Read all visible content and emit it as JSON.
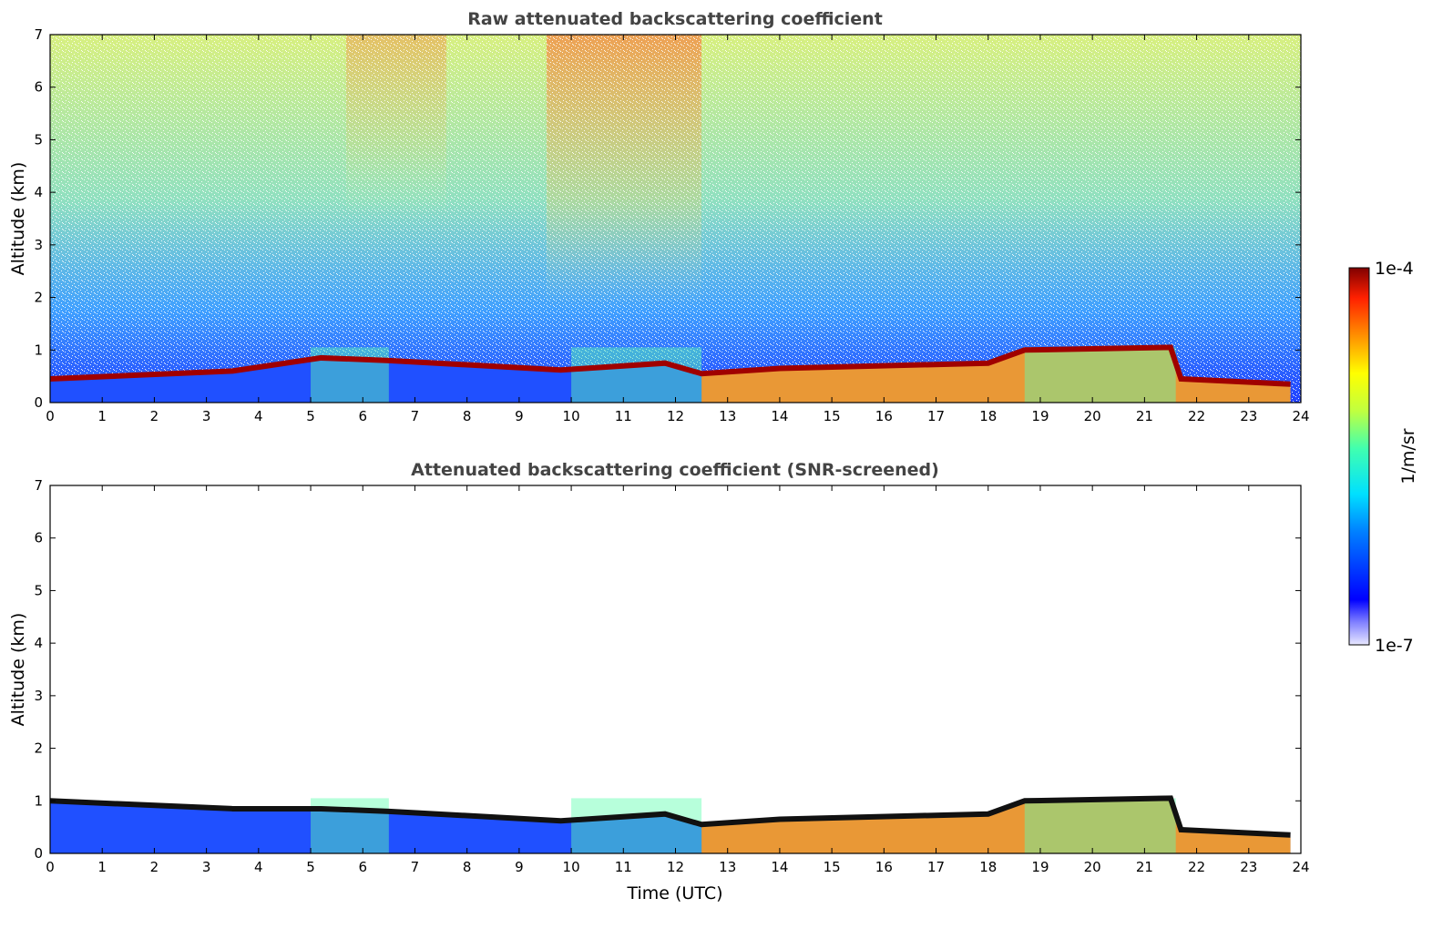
{
  "chart_data": [
    {
      "type": "heatmap",
      "title": "Raw attenuated backscattering coefficient",
      "xlabel": "",
      "ylabel": "Altitude (km)",
      "xlim": [
        0,
        24
      ],
      "ylim": [
        0,
        7
      ],
      "x_ticks": [
        "0",
        "1",
        "2",
        "3",
        "4",
        "5",
        "6",
        "7",
        "8",
        "9",
        "10",
        "11",
        "12",
        "13",
        "14",
        "15",
        "16",
        "17",
        "18",
        "19",
        "20",
        "21",
        "22",
        "23",
        "24"
      ],
      "y_ticks": [
        "0",
        "1",
        "2",
        "3",
        "4",
        "5",
        "6",
        "7"
      ],
      "layer_top_km": [
        {
          "x": 0,
          "y": 0.45
        },
        {
          "x": 3.5,
          "y": 0.6
        },
        {
          "x": 5.2,
          "y": 0.85
        },
        {
          "x": 6.5,
          "y": 0.8
        },
        {
          "x": 9.8,
          "y": 0.62
        },
        {
          "x": 11.8,
          "y": 0.75
        },
        {
          "x": 12.5,
          "y": 0.55
        },
        {
          "x": 14.0,
          "y": 0.65
        },
        {
          "x": 18.0,
          "y": 0.75
        },
        {
          "x": 18.7,
          "y": 1.0
        },
        {
          "x": 21.5,
          "y": 1.05
        },
        {
          "x": 21.7,
          "y": 0.45
        },
        {
          "x": 23.8,
          "y": 0.35
        }
      ],
      "background_noise": "strong, increasing with altitude"
    },
    {
      "type": "heatmap",
      "title": "Attenuated backscattering coefficient (SNR-screened)",
      "xlabel": "Time (UTC)",
      "ylabel": "Altitude (km)",
      "xlim": [
        0,
        24
      ],
      "ylim": [
        0,
        7
      ],
      "x_ticks": [
        "0",
        "1",
        "2",
        "3",
        "4",
        "5",
        "6",
        "7",
        "8",
        "9",
        "10",
        "11",
        "12",
        "13",
        "14",
        "15",
        "16",
        "17",
        "18",
        "19",
        "20",
        "21",
        "22",
        "23",
        "24"
      ],
      "y_ticks": [
        "0",
        "1",
        "2",
        "3",
        "4",
        "5",
        "6",
        "7"
      ],
      "layer_top_km": [
        {
          "x": 0,
          "y": 1.0
        },
        {
          "x": 3.5,
          "y": 0.85
        },
        {
          "x": 5.2,
          "y": 0.85
        },
        {
          "x": 6.5,
          "y": 0.8
        },
        {
          "x": 9.8,
          "y": 0.62
        },
        {
          "x": 11.8,
          "y": 0.75
        },
        {
          "x": 12.5,
          "y": 0.55
        },
        {
          "x": 14.0,
          "y": 0.65
        },
        {
          "x": 18.0,
          "y": 0.75
        },
        {
          "x": 18.7,
          "y": 1.0
        },
        {
          "x": 21.5,
          "y": 1.05
        },
        {
          "x": 21.7,
          "y": 0.45
        },
        {
          "x": 23.8,
          "y": 0.35
        }
      ],
      "background_noise": "removed"
    }
  ],
  "colorbar": {
    "label": "1/m/sr",
    "max_label": "1e-4",
    "min_label": "1e-7",
    "colormap": "jet",
    "scale": "log"
  }
}
